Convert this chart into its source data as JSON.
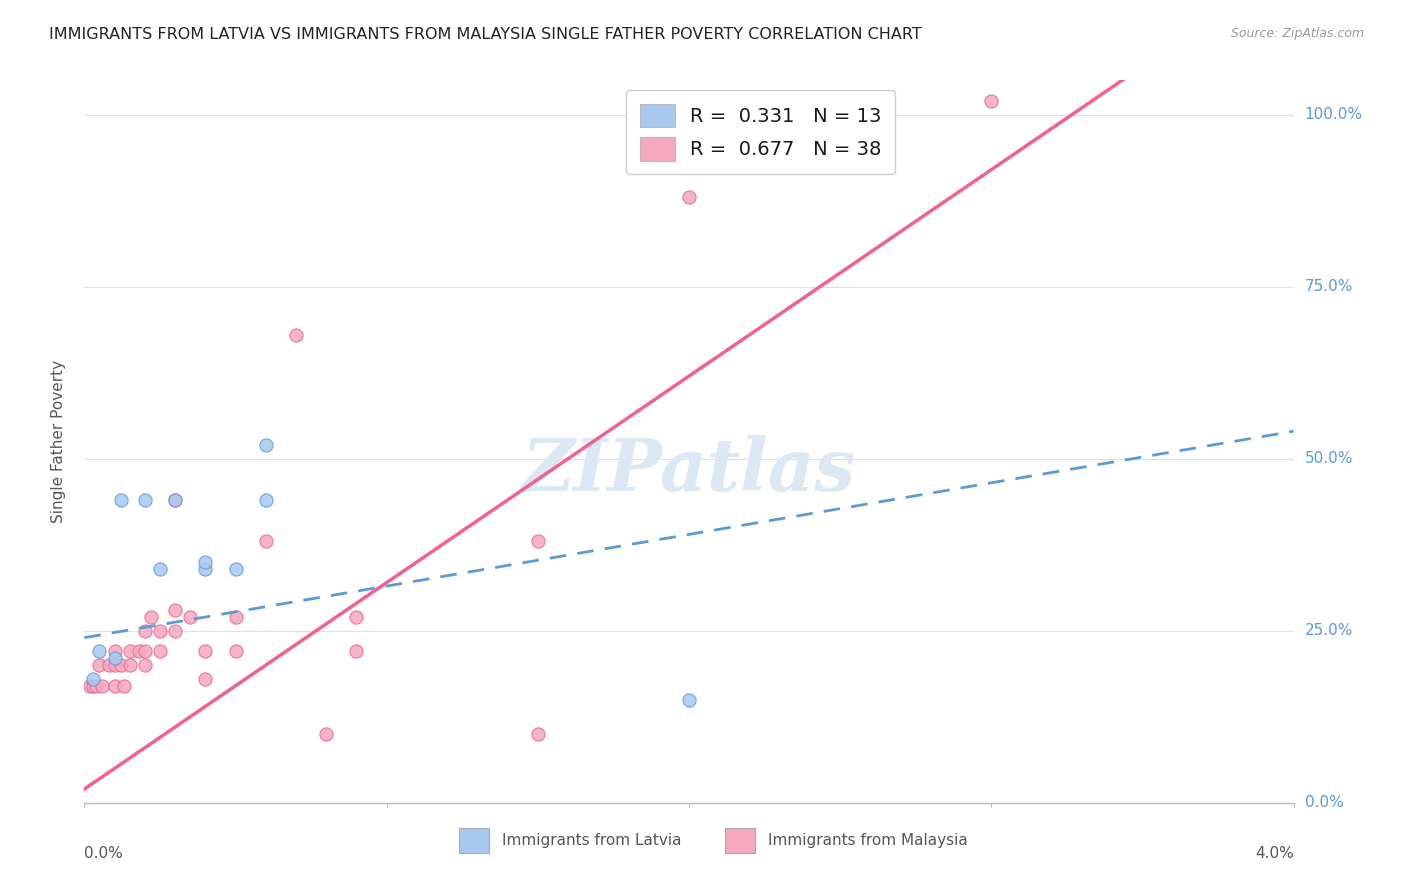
{
  "title": "IMMIGRANTS FROM LATVIA VS IMMIGRANTS FROM MALAYSIA SINGLE FATHER POVERTY CORRELATION CHART",
  "source": "Source: ZipAtlas.com",
  "ylabel": "Single Father Poverty",
  "ylabel_right_ticks": [
    "0.0%",
    "25.0%",
    "50.0%",
    "75.0%",
    "100.0%"
  ],
  "legend_label_latvia": "Immigrants from Latvia",
  "legend_label_malaysia": "Immigrants from Malaysia",
  "R_latvia": 0.331,
  "N_latvia": 13,
  "R_malaysia": 0.677,
  "N_malaysia": 38,
  "xlim": [
    0.0,
    0.04
  ],
  "ylim": [
    0.0,
    1.05
  ],
  "background_color": "#ffffff",
  "grid_color": "#e0e0e0",
  "latvia_color": "#a8c8f0",
  "malaysia_color": "#f5a8be",
  "latvia_line_color": "#5b9bd5",
  "malaysia_line_color": "#f06292",
  "watermark_color": "#dde8f5",
  "latvia_scatter": [
    [
      0.0003,
      0.18
    ],
    [
      0.0005,
      0.22
    ],
    [
      0.001,
      0.21
    ],
    [
      0.0012,
      0.44
    ],
    [
      0.002,
      0.44
    ],
    [
      0.0025,
      0.34
    ],
    [
      0.003,
      0.44
    ],
    [
      0.004,
      0.34
    ],
    [
      0.004,
      0.35
    ],
    [
      0.005,
      0.34
    ],
    [
      0.006,
      0.44
    ],
    [
      0.006,
      0.52
    ],
    [
      0.02,
      0.15
    ]
  ],
  "malaysia_scatter": [
    [
      0.0002,
      0.17
    ],
    [
      0.0003,
      0.17
    ],
    [
      0.0004,
      0.17
    ],
    [
      0.0005,
      0.2
    ],
    [
      0.0006,
      0.17
    ],
    [
      0.0008,
      0.2
    ],
    [
      0.001,
      0.2
    ],
    [
      0.001,
      0.17
    ],
    [
      0.001,
      0.22
    ],
    [
      0.0012,
      0.2
    ],
    [
      0.0013,
      0.17
    ],
    [
      0.0015,
      0.22
    ],
    [
      0.0015,
      0.2
    ],
    [
      0.0018,
      0.22
    ],
    [
      0.002,
      0.25
    ],
    [
      0.002,
      0.22
    ],
    [
      0.002,
      0.2
    ],
    [
      0.0022,
      0.27
    ],
    [
      0.0025,
      0.25
    ],
    [
      0.0025,
      0.22
    ],
    [
      0.003,
      0.28
    ],
    [
      0.003,
      0.44
    ],
    [
      0.003,
      0.25
    ],
    [
      0.0035,
      0.27
    ],
    [
      0.004,
      0.22
    ],
    [
      0.004,
      0.18
    ],
    [
      0.005,
      0.27
    ],
    [
      0.005,
      0.22
    ],
    [
      0.006,
      0.38
    ],
    [
      0.007,
      0.68
    ],
    [
      0.008,
      0.1
    ],
    [
      0.009,
      0.27
    ],
    [
      0.009,
      0.22
    ],
    [
      0.015,
      0.38
    ],
    [
      0.015,
      0.1
    ],
    [
      0.02,
      0.88
    ],
    [
      0.025,
      1.02
    ],
    [
      0.03,
      1.02
    ]
  ],
  "latvia_line_intercept": 0.24,
  "latvia_line_slope": 7.5,
  "malaysia_line_intercept": 0.02,
  "malaysia_line_slope": 30.0
}
